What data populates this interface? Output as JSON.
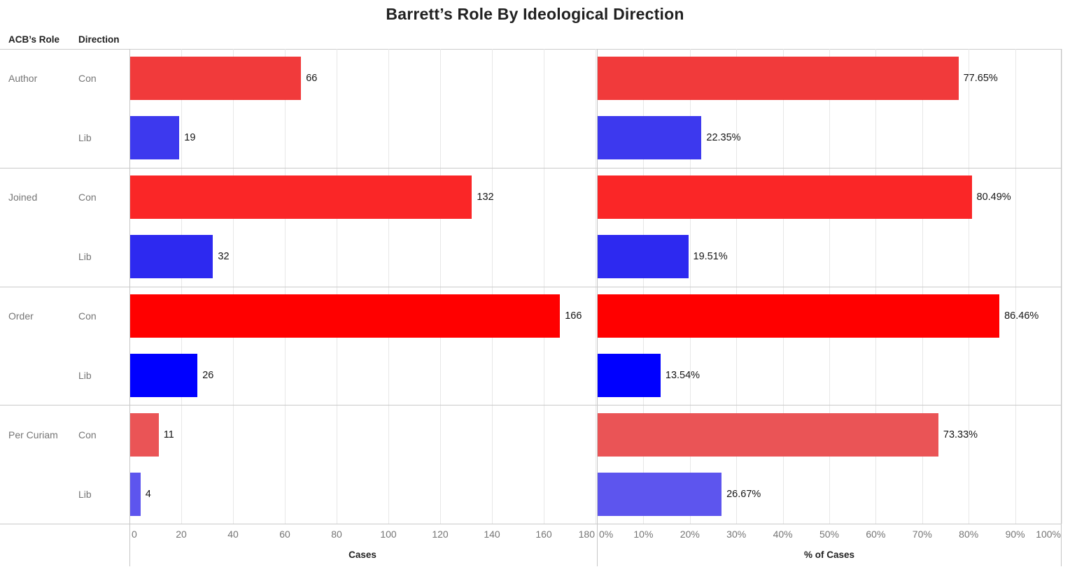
{
  "title": "Barrett’s Role By Ideological Direction",
  "column_headers": {
    "role": "ACB’s Role",
    "direction": "Direction"
  },
  "chart_data": {
    "type": "bar",
    "orientation": "horizontal",
    "grid": true,
    "panels": [
      {
        "id": "cases",
        "axis_label": "Cases",
        "min": 0,
        "max": 180,
        "tick_step": 20,
        "tick_labels": [
          "0",
          "20",
          "40",
          "60",
          "80",
          "100",
          "120",
          "140",
          "160",
          "180"
        ]
      },
      {
        "id": "pct",
        "axis_label": "% of Cases",
        "min": 0,
        "max": 100,
        "tick_step": 10,
        "tick_labels": [
          "0%",
          "10%",
          "20%",
          "30%",
          "40%",
          "50%",
          "60%",
          "70%",
          "80%",
          "90%",
          "100%"
        ]
      }
    ],
    "groups": [
      {
        "role": "Author",
        "bars": [
          {
            "direction": "Con",
            "cases": 66,
            "cases_label": "66",
            "pct": 77.65,
            "pct_label": "77.65%",
            "color": "#f13a3b"
          },
          {
            "direction": "Lib",
            "cases": 19,
            "cases_label": "19",
            "pct": 22.35,
            "pct_label": "22.35%",
            "color": "#3d39ee"
          }
        ]
      },
      {
        "role": "Joined",
        "bars": [
          {
            "direction": "Con",
            "cases": 132,
            "cases_label": "132",
            "pct": 80.49,
            "pct_label": "80.49%",
            "color": "#fa2627"
          },
          {
            "direction": "Lib",
            "cases": 32,
            "cases_label": "32",
            "pct": 19.51,
            "pct_label": "19.51%",
            "color": "#2d29f0"
          }
        ]
      },
      {
        "role": "Order",
        "bars": [
          {
            "direction": "Con",
            "cases": 166,
            "cases_label": "166",
            "pct": 86.46,
            "pct_label": "86.46%",
            "color": "#ff0000"
          },
          {
            "direction": "Lib",
            "cases": 26,
            "cases_label": "26",
            "pct": 13.54,
            "pct_label": "13.54%",
            "color": "#0000ff"
          }
        ]
      },
      {
        "role": "Per Curiam",
        "bars": [
          {
            "direction": "Con",
            "cases": 11,
            "cases_label": "11",
            "pct": 73.33,
            "pct_label": "73.33%",
            "color": "#ea5456"
          },
          {
            "direction": "Lib",
            "cases": 4,
            "cases_label": "4",
            "pct": 26.67,
            "pct_label": "26.67%",
            "color": "#5d55ee"
          }
        ]
      }
    ]
  },
  "colors": {
    "con_base": "#ff0000",
    "lib_base": "#0000ff",
    "gridline": "#e7e7e7",
    "panel_border": "#c6c6c6",
    "group_separator": "#c9c9c9",
    "tick_text": "#757575",
    "row_label_text": "#757575",
    "title_text": "#212121",
    "value_text": "#151515"
  }
}
